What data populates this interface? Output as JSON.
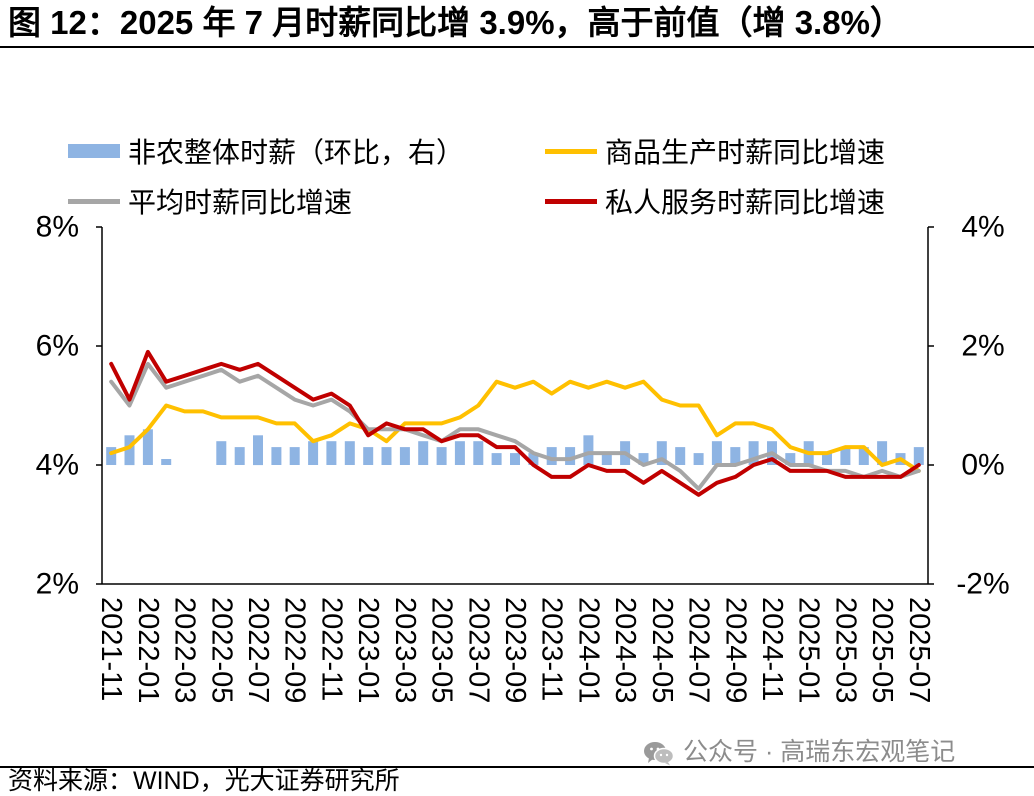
{
  "title": "图 12：2025 年 7 月时薪同比增 3.9%，高于前值（增 3.8%）",
  "source": "资料来源：WIND，光大证券研究所",
  "watermark": {
    "text": "公众号 · 高瑞东宏观笔记",
    "icon": "wechat-icon",
    "color": "#8C8C8C"
  },
  "chart_data": {
    "type": "line",
    "legend": "top",
    "grid": false,
    "x": [
      "2021-11",
      "2021-12",
      "2022-01",
      "2022-02",
      "2022-03",
      "2022-04",
      "2022-05",
      "2022-06",
      "2022-07",
      "2022-08",
      "2022-09",
      "2022-10",
      "2022-11",
      "2022-12",
      "2023-01",
      "2023-02",
      "2023-03",
      "2023-04",
      "2023-05",
      "2023-06",
      "2023-07",
      "2023-08",
      "2023-09",
      "2023-10",
      "2023-11",
      "2023-12",
      "2024-01",
      "2024-02",
      "2024-03",
      "2024-04",
      "2024-05",
      "2024-06",
      "2024-07",
      "2024-08",
      "2024-09",
      "2024-10",
      "2024-11",
      "2024-12",
      "2025-01",
      "2025-02",
      "2025-03",
      "2025-04",
      "2025-05",
      "2025-06",
      "2025-07"
    ],
    "x_tick_step": 2,
    "y_left": {
      "lim": [
        2,
        8
      ],
      "tick_values": [
        8,
        6,
        4,
        2
      ],
      "ticks": [
        "8%",
        "6%",
        "4%",
        "2%"
      ]
    },
    "y_right": {
      "lim": [
        -2,
        4
      ],
      "tick_values": [
        4,
        2,
        0,
        -2
      ],
      "ticks": [
        "4%",
        "2%",
        "0%",
        "-2%"
      ]
    },
    "series": [
      {
        "name": "非农整体时薪（环比，右）",
        "type": "bar",
        "axis": "right",
        "color": "#8EB4E3",
        "values": [
          0.3,
          0.5,
          0.6,
          0.1,
          null,
          null,
          0.4,
          0.3,
          0.5,
          0.3,
          0.3,
          0.4,
          0.4,
          0.4,
          0.3,
          0.3,
          0.3,
          0.4,
          0.3,
          0.4,
          0.4,
          0.2,
          0.2,
          0.2,
          0.3,
          0.3,
          0.5,
          0.2,
          0.4,
          0.2,
          0.4,
          0.3,
          0.2,
          0.4,
          0.3,
          0.4,
          0.4,
          0.2,
          0.4,
          0.2,
          0.3,
          0.3,
          0.4,
          0.2,
          0.3
        ]
      },
      {
        "name": "商品生产时薪同比增速",
        "type": "line",
        "axis": "left",
        "color": "#FFC000",
        "values": [
          4.2,
          4.3,
          4.6,
          5.0,
          4.9,
          4.9,
          4.8,
          4.8,
          4.8,
          4.7,
          4.7,
          4.4,
          4.5,
          4.7,
          4.6,
          4.4,
          4.7,
          4.7,
          4.7,
          4.8,
          5.0,
          5.4,
          5.3,
          5.4,
          5.2,
          5.4,
          5.3,
          5.4,
          5.3,
          5.4,
          5.1,
          5.0,
          5.0,
          4.5,
          4.7,
          4.7,
          4.6,
          4.3,
          4.2,
          4.2,
          4.3,
          4.3,
          4.0,
          4.1,
          3.9
        ]
      },
      {
        "name": "平均时薪同比增速",
        "type": "line",
        "axis": "left",
        "color": "#A6A6A6",
        "values": [
          5.4,
          5.0,
          5.7,
          5.3,
          5.4,
          5.5,
          5.6,
          5.4,
          5.5,
          5.3,
          5.1,
          5.0,
          5.1,
          4.9,
          4.6,
          4.6,
          4.6,
          4.5,
          4.4,
          4.6,
          4.6,
          4.5,
          4.4,
          4.2,
          4.1,
          4.1,
          4.2,
          4.2,
          4.2,
          4.0,
          4.1,
          3.9,
          3.6,
          4.0,
          4.0,
          4.1,
          4.2,
          4.0,
          4.0,
          3.9,
          3.9,
          3.8,
          3.9,
          3.8,
          3.9
        ]
      },
      {
        "name": "私人服务时薪同比增速",
        "type": "line",
        "axis": "left",
        "color": "#C00000",
        "values": [
          5.7,
          5.1,
          5.9,
          5.4,
          5.5,
          5.6,
          5.7,
          5.6,
          5.7,
          5.5,
          5.3,
          5.1,
          5.2,
          5.0,
          4.5,
          4.7,
          4.6,
          4.6,
          4.4,
          4.5,
          4.5,
          4.3,
          4.3,
          4.0,
          3.8,
          3.8,
          4.0,
          3.9,
          3.9,
          3.7,
          3.9,
          3.7,
          3.5,
          3.7,
          3.8,
          4.0,
          4.1,
          3.9,
          3.9,
          3.9,
          3.8,
          3.8,
          3.8,
          3.8,
          4.0
        ]
      }
    ]
  }
}
